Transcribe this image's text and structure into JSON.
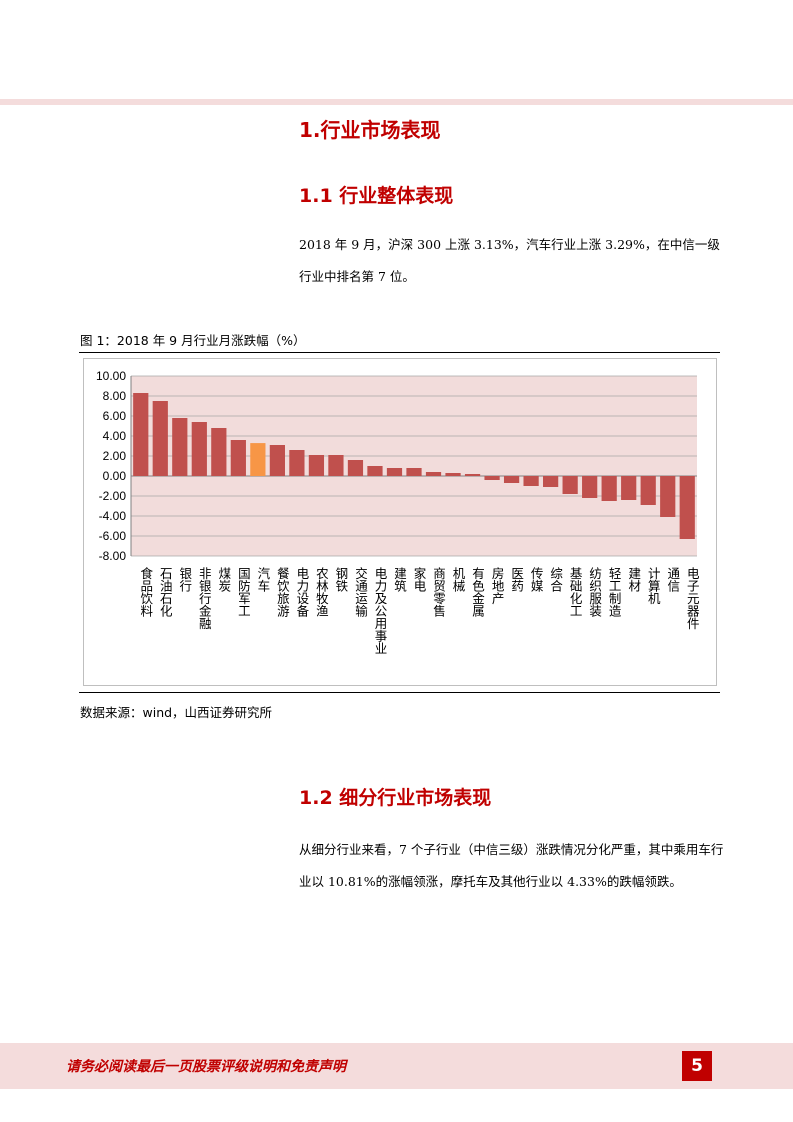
{
  "section1": {
    "title": "1.行业市场表现"
  },
  "section1_1": {
    "title": "1.1 行业整体表现",
    "paragraph": "2018 年 9 月，沪深 300 上涨 3.13%，汽车行业上涨 3.29%，在中信一级行业中排名第 7 位。"
  },
  "figure": {
    "title": "图 1：2018 年 9 月行业月涨跌幅（%）",
    "source": "数据来源：wind，山西证券研究所"
  },
  "chart_data": {
    "type": "bar",
    "title": "",
    "xlabel": "",
    "ylabel": "",
    "ylim": [
      -8,
      10
    ],
    "yticks": [
      10,
      8,
      6,
      4,
      2,
      0,
      -2,
      -4,
      -6,
      -8
    ],
    "ytick_labels": [
      "10.00",
      "8.00",
      "6.00",
      "4.00",
      "2.00",
      "0.00",
      "-2.00",
      "-4.00",
      "-6.00",
      "-8.00"
    ],
    "grid": true,
    "plot_background": "#f2dcdb",
    "bar_color": "#c0504d",
    "highlight_color": "#f79646",
    "highlight_category": "汽车",
    "categories": [
      "食品饮料",
      "石油石化",
      "银行",
      "非银行金融",
      "煤炭",
      "国防军工",
      "汽车",
      "餐饮旅游",
      "电力设备",
      "农林牧渔",
      "钢铁",
      "交通运输",
      "电力及公用事业",
      "建筑",
      "家电",
      "商贸零售",
      "机械",
      "有色金属",
      "房地产",
      "医药",
      "传媒",
      "综合",
      "基础化工",
      "纺织服装",
      "轻工制造",
      "建材",
      "计算机",
      "通信",
      "电子元器件"
    ],
    "values": [
      8.3,
      7.5,
      5.8,
      5.4,
      4.8,
      3.6,
      3.29,
      3.1,
      2.6,
      2.1,
      2.1,
      1.6,
      1.0,
      0.8,
      0.8,
      0.4,
      0.3,
      0.2,
      -0.4,
      -0.7,
      -1.0,
      -1.1,
      -1.8,
      -2.2,
      -2.5,
      -2.4,
      -2.9,
      -4.1,
      -6.3
    ]
  },
  "section1_2": {
    "title": "1.2 细分行业市场表现",
    "paragraph": "从细分行业来看，7 个子行业（中信三级）涨跌情况分化严重，其中乘用车行业以 10.81%的涨幅领涨，摩托车及其他行业以 4.33%的跌幅领跌。"
  },
  "footer": {
    "disclaimer": "请务必阅读最后一页股票评级说明和免责声明",
    "page_number": "5"
  }
}
